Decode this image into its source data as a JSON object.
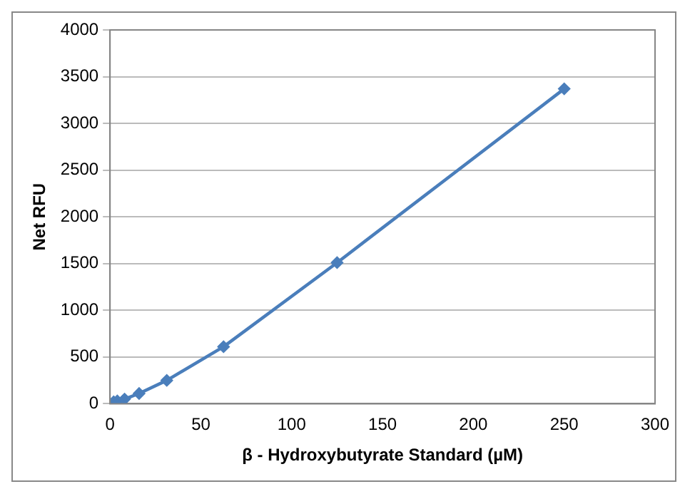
{
  "chart_data": {
    "type": "line",
    "xlabel": "β - Hydroxybutyrate Standard (µM)",
    "ylabel": "Net RFU",
    "x": [
      0,
      2,
      4,
      8,
      16,
      31.25,
      62.5,
      125,
      250
    ],
    "series": [
      {
        "color": "#4a7ebb",
        "values": [
          0,
          20,
          30,
          50,
          110,
          250,
          610,
          1510,
          3370
        ]
      }
    ],
    "xlim": [
      0,
      300
    ],
    "xticks": [
      0,
      50,
      100,
      150,
      200,
      250,
      300
    ],
    "ylim": [
      0,
      4000
    ],
    "yticks": [
      0,
      500,
      1000,
      1500,
      2000,
      2500,
      3000,
      3500,
      4000
    ],
    "grid": "y",
    "legend": false,
    "marker": "diamond",
    "line_style": "solid"
  }
}
